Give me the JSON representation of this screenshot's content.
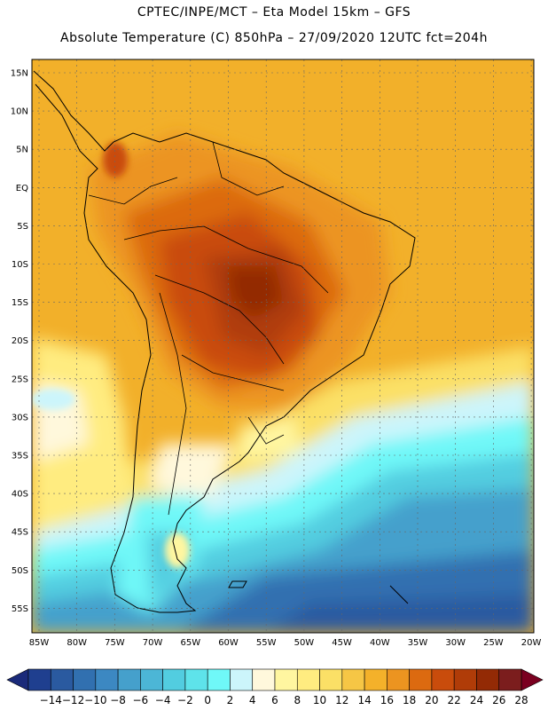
{
  "header": {
    "title_line1": "CPTEC/INPE/MCT –  Eta Model 15km – GFS",
    "title_line2": "Absolute Temperature (C) 850hPa – 27/09/2020 12UTC fct=204h"
  },
  "map": {
    "lon_ticks": [
      "85W",
      "80W",
      "75W",
      "70W",
      "65W",
      "60W",
      "55W",
      "50W",
      "45W",
      "40W",
      "35W",
      "30W",
      "25W",
      "20W"
    ],
    "lat_ticks": [
      "15N",
      "10N",
      "5N",
      "EQ",
      "5S",
      "10S",
      "15S",
      "20S",
      "25S",
      "30S",
      "35S",
      "40S",
      "45S",
      "50S",
      "55S"
    ]
  },
  "colorbar": {
    "labels": [
      "-14",
      "-12",
      "-10",
      "-8",
      "-6",
      "-4",
      "-2",
      "0",
      "2",
      "4",
      "6",
      "8",
      "10",
      "12",
      "14",
      "16",
      "18",
      "20",
      "22",
      "24",
      "26",
      "28"
    ],
    "colors": [
      "#1f3f8f",
      "#2a5aa0",
      "#3170b0",
      "#3c88c2",
      "#45a0cc",
      "#4cb6d6",
      "#52cde0",
      "#5ee3ea",
      "#6ff8f8",
      "#ccf5fb",
      "#fff8dc",
      "#fff6a0",
      "#ffec80",
      "#fbe066",
      "#f6c645",
      "#f4b12a",
      "#ec9420",
      "#dc6a10",
      "#c94c0c",
      "#b03c08",
      "#932a05",
      "#7b1d1d"
    ],
    "under_color": "#1a2a7a",
    "over_color": "#7a0020"
  }
}
